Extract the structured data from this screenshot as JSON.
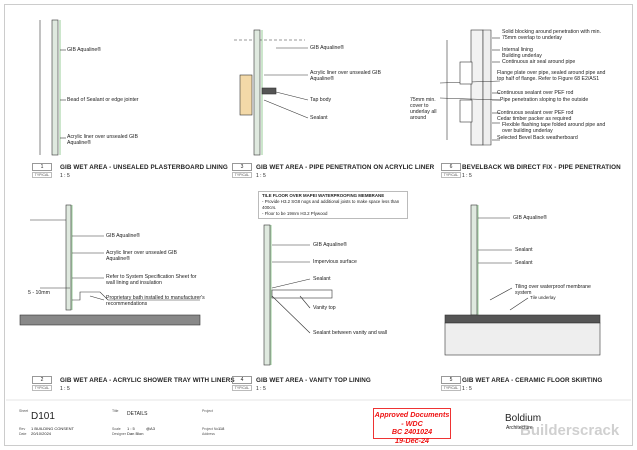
{
  "details": [
    {
      "number": "1",
      "typical": "TYPICAL",
      "title": "GIB WET AREA - UNSEALED PLASTERBOARD LINING",
      "scale": "1 : 5",
      "labels": [
        "GIB Aqualine®",
        "Bead of Sealant or edge jointer",
        "Acrylic liner over unsealed GIB Aqualine®"
      ]
    },
    {
      "number": "3",
      "typical": "TYPICAL",
      "title": "GIB WET AREA - PIPE PENETRATION ON ACRYLIC LINER",
      "scale": "1 : 5",
      "labels": [
        "GIB Aqualine®",
        "Acrylic liner over unsealed GIB Aqualine®",
        "Tap body",
        "Sealant"
      ]
    },
    {
      "number": "6",
      "typical": "TYPICAL",
      "title": "BEVELBACK WB DIRECT FIX - PIPE PENETRATION",
      "scale": "1 : 5",
      "labels": [
        "Solid blocking around penetration with min. 75mm overlap to underlay",
        "Internal lining",
        "Building underlay",
        "Continuous air seal around pipe",
        "Flange plate over pipe, sealed around pipe and top half of flange. Refer to Figure 68 E2/AS1",
        "Continuous sealant over PEF rod",
        "Pipe penetration sloping to the outside",
        "Continuous sealant over PEF rod",
        "Cedar timber packer as required",
        "Flexible flashing tape folded around pipe and over building underlay",
        "Selected Bevel Back weatherboard",
        "75mm min. cover to underlay all around"
      ]
    },
    {
      "number": "2",
      "typical": "TYPICAL",
      "title": "GIB WET AREA - ACRYLIC SHOWER TRAY WITH LINERS",
      "scale": "1 : 5",
      "labels": [
        "GIB Aqualine®",
        "Acrylic liner over unsealed GIB Aqualine®",
        "Refer to System Specification Sheet for wall lining and insulation",
        "5 - 10mm",
        "Proprietary bath installed to manufacturer's recommendations"
      ]
    },
    {
      "number": "4",
      "typical": "TYPICAL",
      "title": "GIB WET AREA - VANITY TOP LINING",
      "scale": "1 : 5",
      "labels": [
        "GIB Aqualine®",
        "Impervious surface",
        "Sealant",
        "Vanity top",
        "Sealant between vanity and wall"
      ]
    },
    {
      "number": "5",
      "typical": "TYPICAL",
      "title": "GIB WET AREA - CERAMIC FLOOR SKIRTING",
      "scale": "1 : 5",
      "labels": [
        "GIB Aqualine®",
        "Sealant",
        "Sealant",
        "Tiling over waterproof membrane system",
        "Tile underlay"
      ]
    }
  ],
  "note": {
    "heading": "TILE FLOOR OVER MAPEI WATERPROOFING MEMBRANE",
    "items": [
      "Provide H3.2 SG8 nogs and additional joists to make space less than 400crs.",
      "Floor to be 19mm H3.2 Plywood"
    ]
  },
  "title_block": {
    "sheet_label": "Sheet",
    "sheet": "D101",
    "rev_label": "Rev",
    "rev": "1   BUILDING CONSENT",
    "date_label": "Date",
    "date": "20/10/2024",
    "title_label": "Title",
    "title": "DETAILS",
    "scale_label": "Scale",
    "scale": "1 : 5",
    "paper": "@A3",
    "drawn_label": "Designer",
    "drawn": "Dan Blon",
    "project_label": "Project",
    "project_no_label": "Project No",
    "project_no": "118",
    "address_label": "Address"
  },
  "stamp": {
    "line1": "Approved Documents - WDC",
    "line2": "BC 2401024",
    "line3": "19-Dec-24",
    "color": "#e11111"
  },
  "brand": {
    "name": "Boldium",
    "sub": "Architecture",
    "watermark": "Builderscrack"
  }
}
